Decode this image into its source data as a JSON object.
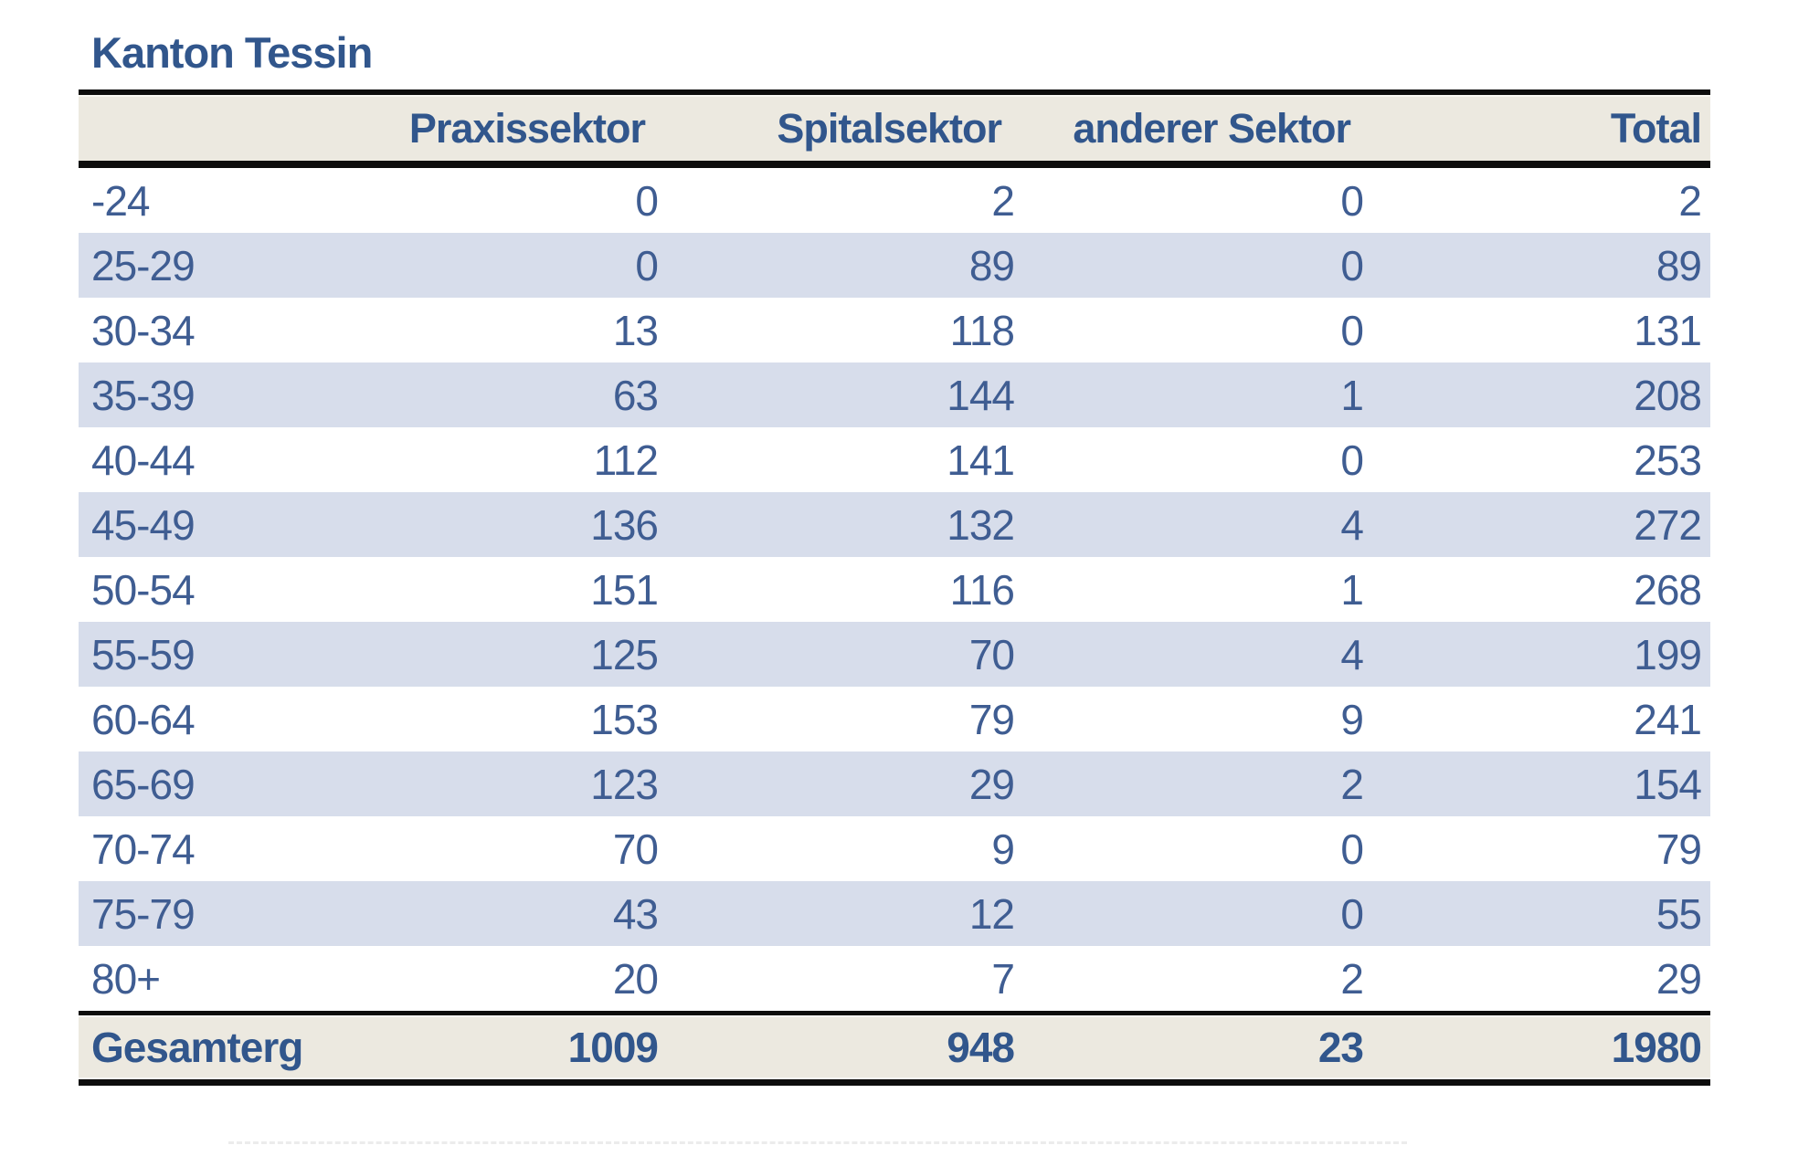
{
  "page": {
    "title": "Kanton Tessin"
  },
  "table": {
    "columns": [
      "",
      "Praxissektor",
      "Spitalsektor",
      "anderer Sektor",
      "Total"
    ],
    "rows": [
      {
        "label": "-24",
        "values": [
          "0",
          "2",
          "0",
          "2"
        ]
      },
      {
        "label": "25-29",
        "values": [
          "0",
          "89",
          "0",
          "89"
        ]
      },
      {
        "label": "30-34",
        "values": [
          "13",
          "118",
          "0",
          "131"
        ]
      },
      {
        "label": "35-39",
        "values": [
          "63",
          "144",
          "1",
          "208"
        ]
      },
      {
        "label": "40-44",
        "values": [
          "112",
          "141",
          "0",
          "253"
        ]
      },
      {
        "label": "45-49",
        "values": [
          "136",
          "132",
          "4",
          "272"
        ]
      },
      {
        "label": "50-54",
        "values": [
          "151",
          "116",
          "1",
          "268"
        ]
      },
      {
        "label": "55-59",
        "values": [
          "125",
          "70",
          "4",
          "199"
        ]
      },
      {
        "label": "60-64",
        "values": [
          "153",
          "79",
          "9",
          "241"
        ]
      },
      {
        "label": "65-69",
        "values": [
          "123",
          "29",
          "2",
          "154"
        ]
      },
      {
        "label": "70-74",
        "values": [
          "70",
          "9",
          "0",
          "79"
        ]
      },
      {
        "label": "75-79",
        "values": [
          "43",
          "12",
          "0",
          "55"
        ]
      },
      {
        "label": "80+",
        "values": [
          "20",
          "7",
          "2",
          "29"
        ]
      }
    ],
    "total_row": {
      "label": "Gesamterg",
      "values": [
        "1009",
        "948",
        "23",
        "1980"
      ]
    }
  },
  "colors": {
    "title_text": "#31568C",
    "data_text": "#3F5D92",
    "stripe": "#D7DDEB",
    "band_beige": "#ECE9E0",
    "rule_black": "#0D0D0D"
  },
  "chart_data": {
    "type": "table",
    "title": "Kanton Tessin",
    "categories": [
      "-24",
      "25-29",
      "30-34",
      "35-39",
      "40-44",
      "45-49",
      "50-54",
      "55-59",
      "60-64",
      "65-69",
      "70-74",
      "75-79",
      "80+"
    ],
    "series": [
      {
        "name": "Praxissektor",
        "values": [
          0,
          0,
          13,
          63,
          112,
          136,
          151,
          125,
          153,
          123,
          70,
          43,
          20
        ]
      },
      {
        "name": "Spitalsektor",
        "values": [
          2,
          89,
          118,
          144,
          141,
          132,
          116,
          70,
          79,
          29,
          9,
          12,
          7
        ]
      },
      {
        "name": "anderer Sektor",
        "values": [
          0,
          0,
          0,
          1,
          0,
          4,
          1,
          4,
          9,
          2,
          0,
          0,
          2
        ]
      },
      {
        "name": "Total",
        "values": [
          2,
          89,
          131,
          208,
          253,
          272,
          268,
          199,
          241,
          154,
          79,
          55,
          29
        ]
      }
    ],
    "totals_row": {
      "label": "Gesamterg",
      "Praxissektor": 1009,
      "Spitalsektor": 948,
      "anderer Sektor": 23,
      "Total": 1980
    },
    "layout": {
      "zebra_stripes": true,
      "header_position": "top",
      "totals_position": "bottom",
      "gridlines": false
    }
  }
}
